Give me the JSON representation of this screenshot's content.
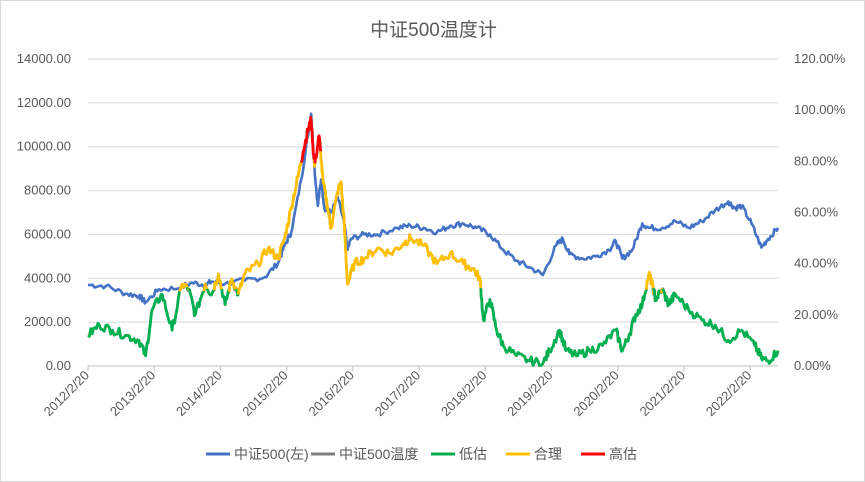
{
  "chart_data": {
    "type": "line",
    "title": "中证500温度计",
    "y_left": {
      "ticks": [
        "0.00",
        "2000.00",
        "4000.00",
        "6000.00",
        "8000.00",
        "10000.00",
        "12000.00",
        "14000.00"
      ],
      "range": [
        0,
        14000
      ]
    },
    "y_right": {
      "ticks": [
        "0.00%",
        "20.00%",
        "40.00%",
        "60.00%",
        "80.00%",
        "100.00%",
        "120.00%"
      ],
      "range": [
        0,
        1.2
      ]
    },
    "x_ticks": [
      "2012/2/20",
      "2013/2/20",
      "2014/2/20",
      "2015/2/20",
      "2016/2/20",
      "2017/2/20",
      "2018/2/20",
      "2019/2/20",
      "2020/2/20",
      "2021/2/20",
      "2022/2/20"
    ],
    "x_range": [
      2012.13,
      2022.55
    ],
    "grid": "horizontal",
    "legend_position": "bottom",
    "thresholds": {
      "low_max": 0.3,
      "high_min": 0.8
    },
    "series": [
      {
        "name": "中证500(左)",
        "color": "#4472C4",
        "axis": "left",
        "points": [
          [
            2012.13,
            3700
          ],
          [
            2012.4,
            3650
          ],
          [
            2012.7,
            3300
          ],
          [
            2012.9,
            3200
          ],
          [
            2013.0,
            2900
          ],
          [
            2013.2,
            3500
          ],
          [
            2013.5,
            3550
          ],
          [
            2013.7,
            3800
          ],
          [
            2013.9,
            3700
          ],
          [
            2014.0,
            3850
          ],
          [
            2014.2,
            3750
          ],
          [
            2014.5,
            3900
          ],
          [
            2014.8,
            4050
          ],
          [
            2015.0,
            4700
          ],
          [
            2015.1,
            5500
          ],
          [
            2015.2,
            6100
          ],
          [
            2015.35,
            8500
          ],
          [
            2015.45,
            10500
          ],
          [
            2015.5,
            11500
          ],
          [
            2015.55,
            9000
          ],
          [
            2015.6,
            7300
          ],
          [
            2015.65,
            8500
          ],
          [
            2015.7,
            7200
          ],
          [
            2015.8,
            7000
          ],
          [
            2015.9,
            7700
          ],
          [
            2016.0,
            6500
          ],
          [
            2016.05,
            5300
          ],
          [
            2016.1,
            5800
          ],
          [
            2016.3,
            6000
          ],
          [
            2016.5,
            6000
          ],
          [
            2016.8,
            6300
          ],
          [
            2017.0,
            6400
          ],
          [
            2017.2,
            6300
          ],
          [
            2017.4,
            6100
          ],
          [
            2017.6,
            6400
          ],
          [
            2017.8,
            6500
          ],
          [
            2018.0,
            6300
          ],
          [
            2018.2,
            6000
          ],
          [
            2018.4,
            5300
          ],
          [
            2018.6,
            4800
          ],
          [
            2018.8,
            4500
          ],
          [
            2019.0,
            4150
          ],
          [
            2019.2,
            5500
          ],
          [
            2019.3,
            5800
          ],
          [
            2019.4,
            5100
          ],
          [
            2019.6,
            4900
          ],
          [
            2019.8,
            5000
          ],
          [
            2020.0,
            5300
          ],
          [
            2020.1,
            5700
          ],
          [
            2020.2,
            4900
          ],
          [
            2020.35,
            5300
          ],
          [
            2020.5,
            6500
          ],
          [
            2020.6,
            6300
          ],
          [
            2020.8,
            6300
          ],
          [
            2021.0,
            6600
          ],
          [
            2021.2,
            6300
          ],
          [
            2021.4,
            6600
          ],
          [
            2021.6,
            7100
          ],
          [
            2021.8,
            7500
          ],
          [
            2021.9,
            7200
          ],
          [
            2022.0,
            7300
          ],
          [
            2022.15,
            6500
          ],
          [
            2022.3,
            5400
          ],
          [
            2022.4,
            5800
          ],
          [
            2022.55,
            6300
          ]
        ]
      },
      {
        "name": "中证500温度",
        "color": "#7F7F7F",
        "axis": "right",
        "points": [
          [
            2012.13,
            0.12
          ],
          [
            2012.3,
            0.16
          ],
          [
            2012.5,
            0.14
          ],
          [
            2012.7,
            0.12
          ],
          [
            2012.9,
            0.1
          ],
          [
            2013.0,
            0.04
          ],
          [
            2013.1,
            0.22
          ],
          [
            2013.25,
            0.28
          ],
          [
            2013.4,
            0.14
          ],
          [
            2013.55,
            0.32
          ],
          [
            2013.65,
            0.3
          ],
          [
            2013.75,
            0.2
          ],
          [
            2013.9,
            0.32
          ],
          [
            2014.0,
            0.28
          ],
          [
            2014.1,
            0.36
          ],
          [
            2014.2,
            0.24
          ],
          [
            2014.3,
            0.34
          ],
          [
            2014.4,
            0.28
          ],
          [
            2014.5,
            0.36
          ],
          [
            2014.7,
            0.4
          ],
          [
            2014.85,
            0.46
          ],
          [
            2015.0,
            0.42
          ],
          [
            2015.1,
            0.5
          ],
          [
            2015.2,
            0.62
          ],
          [
            2015.3,
            0.74
          ],
          [
            2015.38,
            0.84
          ],
          [
            2015.45,
            0.92
          ],
          [
            2015.5,
            0.96
          ],
          [
            2015.55,
            0.78
          ],
          [
            2015.62,
            0.9
          ],
          [
            2015.68,
            0.72
          ],
          [
            2015.75,
            0.62
          ],
          [
            2015.8,
            0.54
          ],
          [
            2015.9,
            0.68
          ],
          [
            2015.95,
            0.72
          ],
          [
            2016.0,
            0.55
          ],
          [
            2016.05,
            0.32
          ],
          [
            2016.15,
            0.4
          ],
          [
            2016.3,
            0.42
          ],
          [
            2016.5,
            0.46
          ],
          [
            2016.7,
            0.44
          ],
          [
            2016.9,
            0.48
          ],
          [
            2017.0,
            0.5
          ],
          [
            2017.2,
            0.47
          ],
          [
            2017.4,
            0.4
          ],
          [
            2017.6,
            0.44
          ],
          [
            2017.8,
            0.4
          ],
          [
            2017.95,
            0.38
          ],
          [
            2018.05,
            0.34
          ],
          [
            2018.1,
            0.18
          ],
          [
            2018.2,
            0.26
          ],
          [
            2018.3,
            0.14
          ],
          [
            2018.4,
            0.08
          ],
          [
            2018.6,
            0.04
          ],
          [
            2018.8,
            0.02
          ],
          [
            2019.0,
            0.01
          ],
          [
            2019.1,
            0.06
          ],
          [
            2019.25,
            0.14
          ],
          [
            2019.35,
            0.06
          ],
          [
            2019.5,
            0.04
          ],
          [
            2019.7,
            0.06
          ],
          [
            2019.9,
            0.08
          ],
          [
            2020.1,
            0.14
          ],
          [
            2020.2,
            0.06
          ],
          [
            2020.3,
            0.12
          ],
          [
            2020.4,
            0.2
          ],
          [
            2020.5,
            0.24
          ],
          [
            2020.6,
            0.36
          ],
          [
            2020.65,
            0.32
          ],
          [
            2020.7,
            0.26
          ],
          [
            2020.8,
            0.3
          ],
          [
            2020.9,
            0.24
          ],
          [
            2021.0,
            0.28
          ],
          [
            2021.2,
            0.22
          ],
          [
            2021.4,
            0.18
          ],
          [
            2021.6,
            0.16
          ],
          [
            2021.8,
            0.1
          ],
          [
            2022.0,
            0.14
          ],
          [
            2022.2,
            0.08
          ],
          [
            2022.3,
            0.03
          ],
          [
            2022.4,
            0.02
          ],
          [
            2022.55,
            0.06
          ]
        ]
      },
      {
        "name": "低估",
        "color": "#00B050"
      },
      {
        "name": "合理",
        "color": "#FFC000"
      },
      {
        "name": "高估",
        "color": "#FF0000"
      }
    ]
  }
}
